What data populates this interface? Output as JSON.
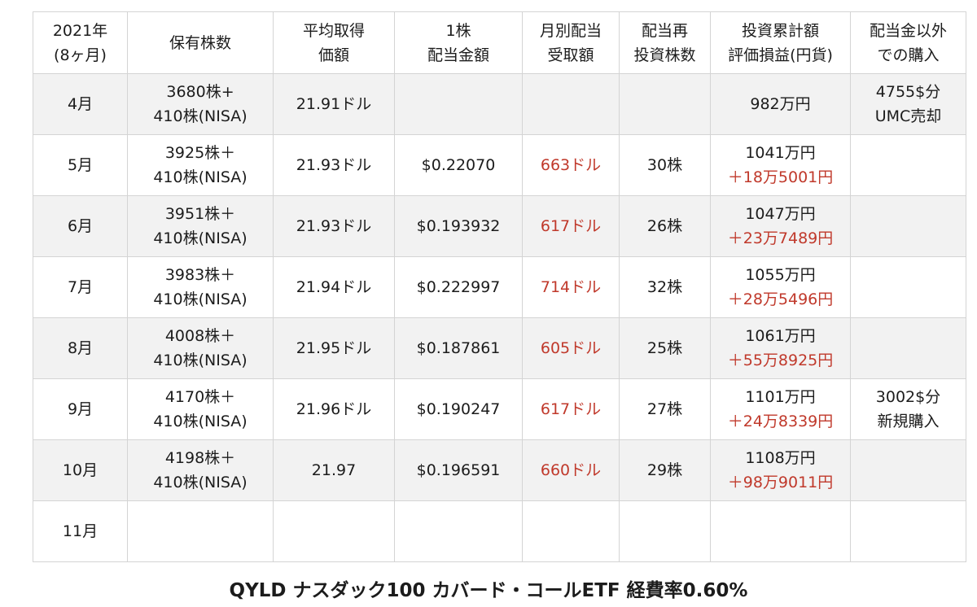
{
  "headers": [
    [
      "2021年",
      "(8ヶ月)"
    ],
    [
      "保有株数"
    ],
    [
      "平均取得",
      "価額"
    ],
    [
      "1株",
      "配当金額"
    ],
    [
      "月別配当",
      "受取額"
    ],
    [
      "配当再",
      "投資株数"
    ],
    [
      "投資累計額",
      "評価損益(円貨)"
    ],
    [
      "配当金以外",
      "での購入"
    ]
  ],
  "rows": [
    {
      "month": "4月",
      "shares": [
        "3680株+",
        "410株(NISA)"
      ],
      "avg_cost": "21.91ドル",
      "div_per_share": "",
      "monthly_div": "",
      "reinvest_shares": "",
      "cumulative": "982万円",
      "pl": "",
      "other": [
        "4755$分",
        "UMC売却"
      ]
    },
    {
      "month": "5月",
      "shares": [
        "3925株＋",
        "410株(NISA)"
      ],
      "avg_cost": "21.93ドル",
      "div_per_share": "$0.22070",
      "monthly_div": "663ドル",
      "reinvest_shares": "30株",
      "cumulative": "1041万円",
      "pl": "＋18万5001円",
      "other": [
        "",
        ""
      ]
    },
    {
      "month": "6月",
      "shares": [
        "3951株＋",
        "410株(NISA)"
      ],
      "avg_cost": "21.93ドル",
      "div_per_share": "$0.193932",
      "monthly_div": "617ドル",
      "reinvest_shares": "26株",
      "cumulative": "1047万円",
      "pl": "＋23万7489円",
      "other": [
        "",
        ""
      ]
    },
    {
      "month": "7月",
      "shares": [
        "3983株＋",
        "410株(NISA)"
      ],
      "avg_cost": "21.94ドル",
      "div_per_share": "$0.222997",
      "monthly_div": "714ドル",
      "reinvest_shares": "32株",
      "cumulative": "1055万円",
      "pl": "＋28万5496円",
      "other": [
        "",
        ""
      ]
    },
    {
      "month": "8月",
      "shares": [
        "4008株＋",
        "410株(NISA)"
      ],
      "avg_cost": "21.95ドル",
      "div_per_share": "$0.187861",
      "monthly_div": "605ドル",
      "reinvest_shares": "25株",
      "cumulative": "1061万円",
      "pl": "＋55万8925円",
      "other": [
        "",
        ""
      ]
    },
    {
      "month": "9月",
      "shares": [
        "4170株＋",
        "410株(NISA)"
      ],
      "avg_cost": "21.96ドル",
      "div_per_share": "$0.190247",
      "monthly_div": "617ドル",
      "reinvest_shares": "27株",
      "cumulative": "1101万円",
      "pl": "＋24万8339円",
      "other": [
        "3002$分",
        "新規購入"
      ]
    },
    {
      "month": "10月",
      "shares": [
        "4198株＋",
        "410株(NISA)"
      ],
      "avg_cost": "21.97",
      "div_per_share": "$0.196591",
      "monthly_div": "660ドル",
      "reinvest_shares": "29株",
      "cumulative": "1108万円",
      "pl": "＋98万9011円",
      "other": [
        "",
        ""
      ]
    },
    {
      "month": "11月",
      "shares": [
        "",
        ""
      ],
      "avg_cost": "",
      "div_per_share": "",
      "monthly_div": "",
      "reinvest_shares": "",
      "cumulative": "",
      "pl": "",
      "other": [
        "",
        ""
      ]
    }
  ],
  "caption": "QYLD ナスダック100 カバード・コールETF  経費率0.60%",
  "colors": {
    "positive": "#c0392b",
    "row_shade": "#f2f2f2",
    "border": "#d4d4d4"
  }
}
